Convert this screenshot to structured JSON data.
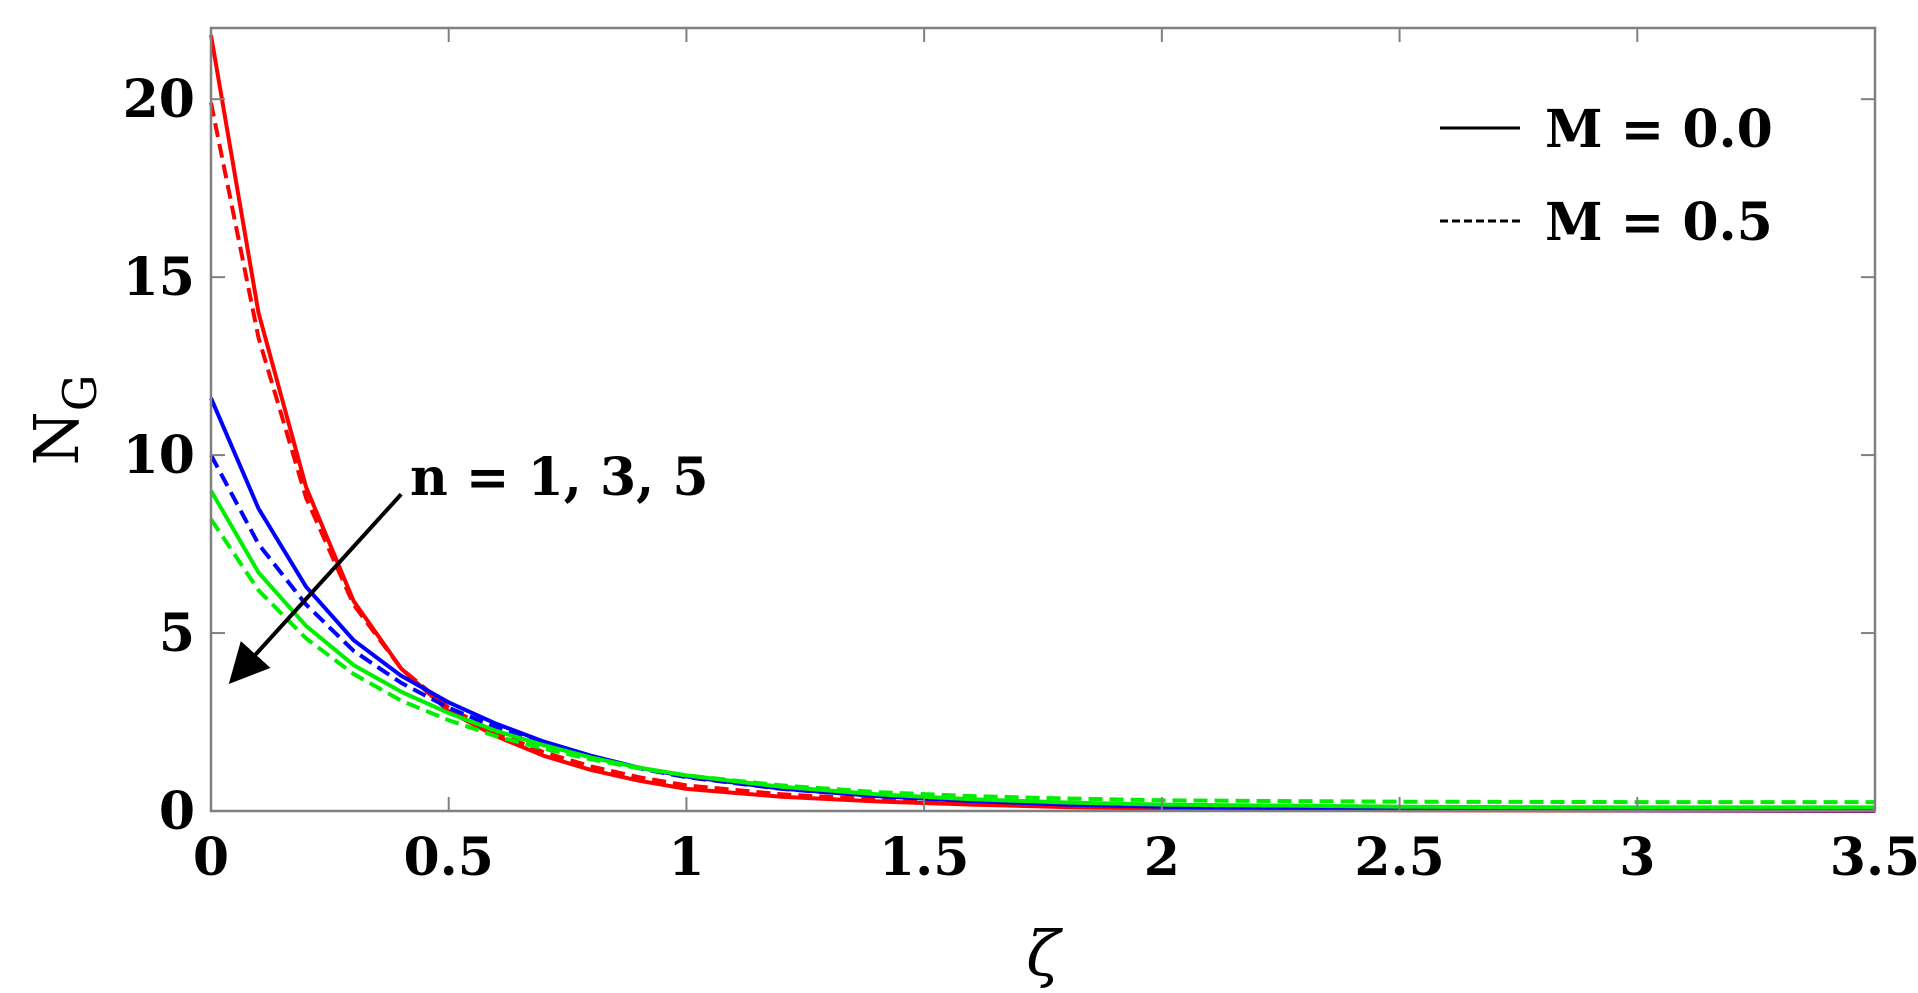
{
  "chart_data": {
    "type": "line",
    "title": "",
    "xlabel": "ζ",
    "ylabel": {
      "main": "N",
      "sub": "G"
    },
    "xlim": [
      0,
      3.5
    ],
    "ylim": [
      0,
      22
    ],
    "xticks": [
      0,
      0.5,
      1,
      1.5,
      2,
      2.5,
      3,
      3.5
    ],
    "xtick_labels": [
      "0",
      "0.5",
      "1",
      "1.5",
      "2",
      "2.5",
      "3",
      "3.5"
    ],
    "yticks": [
      0,
      5,
      10,
      15,
      20
    ],
    "ytick_labels": [
      "0",
      "5",
      "10",
      "15",
      "20"
    ],
    "grid": false,
    "legend": {
      "placement": "top-right",
      "entries": [
        {
          "label": "M = 0.0",
          "style": "solid"
        },
        {
          "label": "M = 0.5",
          "style": "dashed"
        }
      ]
    },
    "annotations": [
      {
        "text": "n = 1, 3, 5",
        "arrow_from": [
          0.4,
          8.9
        ],
        "arrow_to": [
          0.06,
          3.9
        ]
      }
    ],
    "colors": {
      "red": "#ff0000",
      "blue": "#0000ff",
      "green": "#00ee00",
      "axis": "#000000"
    },
    "x": [
      0,
      0.1,
      0.2,
      0.3,
      0.4,
      0.5,
      0.6,
      0.7,
      0.8,
      0.9,
      1.0,
      1.2,
      1.4,
      1.6,
      1.8,
      2.0,
      2.5,
      3.0,
      3.5
    ],
    "series": [
      {
        "color": "red",
        "style": "solid",
        "values": [
          21.8,
          14.0,
          9.1,
          5.9,
          4.0,
          2.8,
          2.1,
          1.55,
          1.15,
          0.85,
          0.62,
          0.4,
          0.27,
          0.18,
          0.11,
          0.07,
          0.02,
          0.01,
          0.0
        ]
      },
      {
        "color": "red",
        "style": "dashed",
        "values": [
          19.9,
          13.3,
          8.8,
          5.8,
          4.0,
          2.9,
          2.2,
          1.65,
          1.25,
          0.95,
          0.72,
          0.47,
          0.32,
          0.22,
          0.15,
          0.11,
          0.06,
          0.03,
          0.02
        ]
      },
      {
        "color": "blue",
        "style": "solid",
        "values": [
          11.6,
          8.5,
          6.3,
          4.8,
          3.8,
          3.05,
          2.45,
          1.95,
          1.55,
          1.22,
          0.97,
          0.63,
          0.42,
          0.28,
          0.18,
          0.12,
          0.04,
          0.02,
          0.01
        ]
      },
      {
        "color": "blue",
        "style": "dashed",
        "values": [
          10.0,
          7.5,
          5.8,
          4.5,
          3.6,
          2.9,
          2.35,
          1.9,
          1.52,
          1.2,
          0.95,
          0.62,
          0.42,
          0.3,
          0.22,
          0.17,
          0.1,
          0.07,
          0.05
        ]
      },
      {
        "color": "green",
        "style": "solid",
        "values": [
          9.0,
          6.7,
          5.2,
          4.1,
          3.35,
          2.75,
          2.25,
          1.85,
          1.5,
          1.22,
          1.0,
          0.68,
          0.47,
          0.33,
          0.24,
          0.18,
          0.12,
          0.1,
          0.1
        ]
      },
      {
        "color": "green",
        "style": "dashed",
        "values": [
          8.2,
          6.2,
          4.85,
          3.85,
          3.1,
          2.55,
          2.1,
          1.75,
          1.45,
          1.2,
          1.0,
          0.72,
          0.53,
          0.42,
          0.35,
          0.3,
          0.26,
          0.25,
          0.25
        ]
      }
    ]
  }
}
